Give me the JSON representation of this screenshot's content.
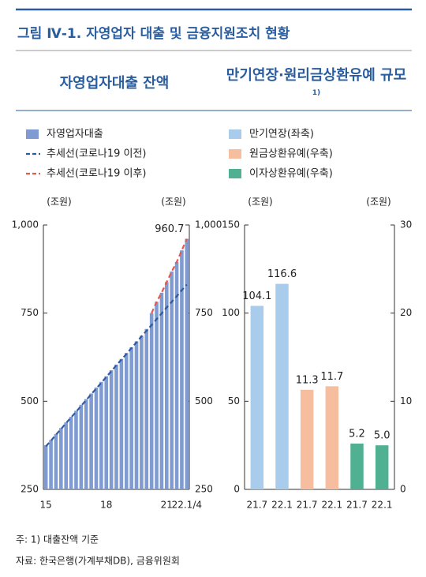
{
  "title": "그림 Ⅳ-1. 자영업자 대출 및 금융지원조치 현황",
  "notes": [
    "주: 1) 대출잔액 기준",
    "자료: 한국은행(가계부채DB), 금융위원회"
  ],
  "chart_data": [
    {
      "type": "bar",
      "title": "자영업자대출 잔액",
      "y_unit": "(조원)",
      "y2_unit": "(조원)",
      "categories": [
        "15",
        null,
        null,
        null,
        null,
        null,
        null,
        null,
        null,
        null,
        null,
        null,
        "18",
        null,
        null,
        null,
        null,
        null,
        null,
        null,
        null,
        null,
        null,
        null,
        "21",
        null,
        null,
        null,
        "22.1/4"
      ],
      "ylim": [
        250,
        1000
      ],
      "yticks": [
        250,
        500,
        750,
        {
          "value": 1000,
          "label": "1,000"
        }
      ],
      "y2lim": [
        250,
        1000
      ],
      "y2ticks": [
        250,
        500,
        750,
        {
          "value": 1000,
          "label": "1,000"
        }
      ],
      "series": [
        {
          "name": "자영업자대출",
          "type": "bar",
          "color": "#7f9bd2",
          "values": [
            375,
            390,
            407,
            424,
            440,
            456,
            473,
            490,
            506,
            522,
            539,
            555,
            571,
            588,
            604,
            620,
            637,
            653,
            670,
            686,
            705,
            750,
            782,
            808,
            838,
            868,
            895,
            928,
            960.7
          ],
          "value_labels": [
            null,
            null,
            null,
            null,
            null,
            null,
            null,
            null,
            null,
            null,
            null,
            null,
            null,
            null,
            null,
            null,
            null,
            null,
            null,
            null,
            null,
            null,
            null,
            null,
            null,
            null,
            null,
            null,
            "960.7"
          ]
        },
        {
          "name": "추세선(코로나19 이전)",
          "type": "line",
          "dash": true,
          "color": "#2d5aa0",
          "values": [
            372,
            388,
            405,
            421,
            438,
            454,
            470,
            487,
            503,
            520,
            536,
            552,
            569,
            585,
            602,
            618,
            634,
            651,
            667,
            684,
            700,
            716,
            733,
            749,
            766,
            782,
            798,
            815,
            831
          ]
        },
        {
          "name": "추세선(코로나19 이후)",
          "type": "line",
          "dash": true,
          "color": "#e8584f",
          "values": [
            null,
            null,
            null,
            null,
            null,
            null,
            null,
            null,
            null,
            null,
            null,
            null,
            null,
            null,
            null,
            null,
            null,
            null,
            null,
            null,
            null,
            750,
            782,
            808,
            838,
            868,
            895,
            928,
            960.7
          ]
        }
      ]
    },
    {
      "type": "bar",
      "title": "만기연장·원리금상환유예 규모",
      "title_note": "1)",
      "y_unit": "(조원)",
      "y2_unit": "(조원)",
      "categories": [
        "21.7",
        "22.1",
        "21.7",
        "22.1",
        "21.7",
        "22.1"
      ],
      "ylim": [
        0,
        150
      ],
      "yticks": [
        0,
        50,
        100,
        150
      ],
      "y2lim": [
        0,
        30
      ],
      "y2ticks": [
        0,
        10,
        20,
        30
      ],
      "series": [
        {
          "name": "만기연장(좌축)",
          "type": "bar",
          "color": "#a9cbec",
          "values": [
            104.1,
            116.6,
            null,
            null,
            null,
            null
          ]
        },
        {
          "name": "원금상환유예(우축)",
          "type": "bar",
          "axis": "y2",
          "color": "#f7bd9f",
          "values": [
            null,
            null,
            11.3,
            11.7,
            null,
            null
          ]
        },
        {
          "name": "이자상환유예(우축)",
          "type": "bar",
          "axis": "y2",
          "color": "#4fb092",
          "values": [
            null,
            null,
            null,
            null,
            5.2,
            5.0
          ],
          "value_labels": [
            null,
            null,
            null,
            null,
            "5.2",
            "5.0"
          ]
        }
      ]
    }
  ]
}
